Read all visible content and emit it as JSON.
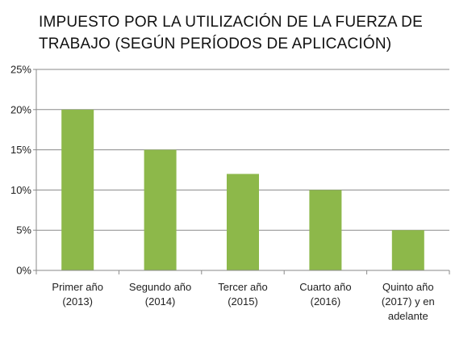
{
  "chart_data": {
    "type": "bar",
    "title_lines": [
      "IMPUESTO POR LA UTILIZACIÓN DE LA FUERZA DE",
      "TRABAJO (SEGÚN PERÍODOS DE APLICACIÓN)"
    ],
    "categories": [
      [
        "Primer año",
        "(2013)"
      ],
      [
        "Segundo año",
        "(2014)"
      ],
      [
        "Tercer año",
        "(2015)"
      ],
      [
        "Cuarto año",
        "(2016)"
      ],
      [
        "Quinto año",
        "(2017) y en",
        "adelante"
      ]
    ],
    "values": [
      20,
      15,
      12,
      10,
      5
    ],
    "y_ticks": [
      "0%",
      "5%",
      "10%",
      "15%",
      "20%",
      "25%"
    ],
    "ylim": [
      0,
      25
    ],
    "xlabel": "",
    "ylabel": "",
    "grid": true,
    "legend": "none",
    "bar_color": "#8DB84A",
    "grid_color": "#8a8a8a",
    "axis_color": "#8a8a8a"
  }
}
